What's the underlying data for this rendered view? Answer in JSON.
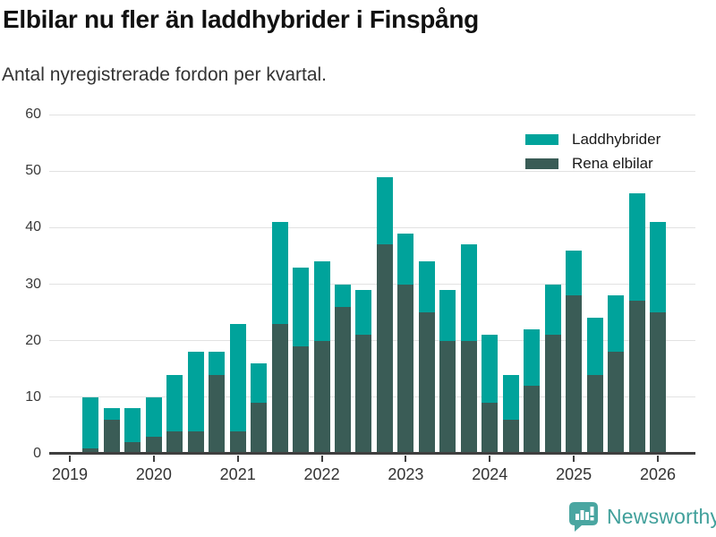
{
  "header": {
    "title": "Elbilar nu fler än laddhybrider i Finspång",
    "subtitle": "Antal nyregistrerade fordon per kvartal."
  },
  "footer": {
    "brand": "Newsworthy",
    "logo_icon": "bar-chart-speech-bubble-icon",
    "brand_color": "#41a09b"
  },
  "colors": {
    "laddhybrider": "#00a39b",
    "rena_elbilar": "#3a5c56",
    "gridline": "#e2e2e2",
    "axis": "#3f3f3f",
    "tick_text": "#333333"
  },
  "chart_data": {
    "type": "bar",
    "stacked": true,
    "title": "Elbilar nu fler än laddhybrider i Finspång",
    "subtitle": "Antal nyregistrerade fordon per kvartal.",
    "xlabel": "",
    "ylabel": "",
    "ylim": [
      0,
      60
    ],
    "y_ticks": [
      0,
      10,
      20,
      30,
      40,
      50,
      60
    ],
    "grid": "horizontal",
    "legend_position": "top-right",
    "x_tick_labels": [
      "2019",
      "2020",
      "2021",
      "2022",
      "2023",
      "2024",
      "2025",
      "2026"
    ],
    "categories": [
      "2019 Q2",
      "2019 Q3",
      "2019 Q4",
      "2020 Q1",
      "2020 Q2",
      "2020 Q3",
      "2020 Q4",
      "2021 Q1",
      "2021 Q2",
      "2021 Q3",
      "2021 Q4",
      "2022 Q1",
      "2022 Q2",
      "2022 Q3",
      "2022 Q4",
      "2023 Q1",
      "2023 Q2",
      "2023 Q3",
      "2023 Q4",
      "2024 Q1",
      "2024 Q2",
      "2024 Q3",
      "2024 Q4",
      "2025 Q1",
      "2025 Q2",
      "2025 Q3",
      "2025 Q4",
      "2026 Q1"
    ],
    "series": [
      {
        "name": "Rena elbilar",
        "color": "#3a5c56",
        "values": [
          1,
          6,
          2,
          3,
          4,
          4,
          14,
          4,
          9,
          23,
          19,
          20,
          26,
          21,
          37,
          30,
          25,
          20,
          20,
          9,
          6,
          12,
          21,
          28,
          14,
          18,
          27,
          25
        ]
      },
      {
        "name": "Laddhybrider",
        "color": "#00a39b",
        "values": [
          9,
          2,
          6,
          7,
          10,
          14,
          4,
          19,
          7,
          18,
          14,
          14,
          4,
          8,
          12,
          9,
          9,
          9,
          17,
          12,
          8,
          10,
          9,
          8,
          10,
          10,
          19,
          16
        ]
      }
    ],
    "totals": [
      10,
      8,
      8,
      10,
      14,
      18,
      18,
      23,
      16,
      41,
      33,
      34,
      30,
      29,
      49,
      39,
      34,
      29,
      37,
      21,
      14,
      22,
      30,
      36,
      24,
      28,
      46,
      41
    ]
  }
}
